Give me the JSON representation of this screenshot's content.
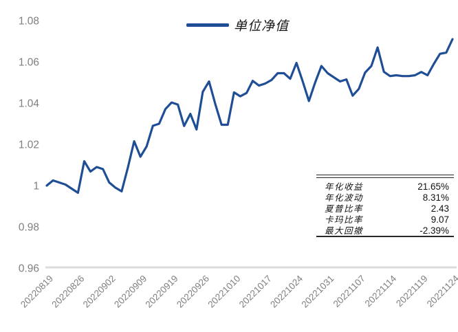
{
  "legend": {
    "label": "单位净值"
  },
  "colors": {
    "series": "#1f4e96",
    "axis_line": "#dcdcdc",
    "tick_text": "#7f7f7f",
    "table_border": "#262626"
  },
  "chart_data": {
    "type": "line",
    "series_name": "单位净值",
    "title": "",
    "xlabel": "",
    "ylabel": "",
    "grid": false,
    "legend_position": "top-center",
    "ylim": [
      0.96,
      1.08
    ],
    "y_ticks": [
      0.96,
      0.98,
      1,
      1.02,
      1.04,
      1.06,
      1.08
    ],
    "y_tick_labels": [
      "0.96",
      "0.98",
      "1",
      "1.02",
      "1.04",
      "1.06",
      "1.08"
    ],
    "tick_every": 5,
    "x_tick_labels": [
      "20220819",
      "20220826",
      "20220902",
      "20220909",
      "20220919",
      "20220926",
      "20221010",
      "20221017",
      "20221024",
      "20221031",
      "20221107",
      "20221114",
      "20221119",
      "20221124"
    ],
    "values": [
      1.0,
      1.0025,
      1.0015,
      1.0005,
      0.9985,
      0.9965,
      1.0118,
      1.0068,
      1.009,
      1.008,
      1.0015,
      0.999,
      0.9972,
      1.0088,
      1.0215,
      1.014,
      1.019,
      1.029,
      1.03,
      1.0371,
      1.0403,
      1.0393,
      1.0289,
      1.0348,
      1.0272,
      1.0455,
      1.0505,
      1.0395,
      1.0295,
      1.0295,
      1.0452,
      1.0433,
      1.0449,
      1.0508,
      1.0485,
      1.0495,
      1.0512,
      1.0545,
      1.0545,
      1.0518,
      1.0595,
      1.0505,
      1.041,
      1.05,
      1.058,
      1.0545,
      1.0525,
      1.0505,
      1.0515,
      1.0436,
      1.0469,
      1.0548,
      1.058,
      1.067,
      1.0552,
      1.0531,
      1.0535,
      1.0531,
      1.0531,
      1.0535,
      1.0551,
      1.0535,
      1.059,
      1.0639,
      1.0645,
      1.071
    ]
  },
  "stats_table": {
    "rows": [
      {
        "label": "年化收益",
        "value": "21.65%"
      },
      {
        "label": "年化波动",
        "value": "8.31%"
      },
      {
        "label": "夏普比率",
        "value": "2.43"
      },
      {
        "label": "卡玛比率",
        "value": "9.07"
      },
      {
        "label": "最大回撤",
        "value": "-2.39%"
      }
    ]
  }
}
